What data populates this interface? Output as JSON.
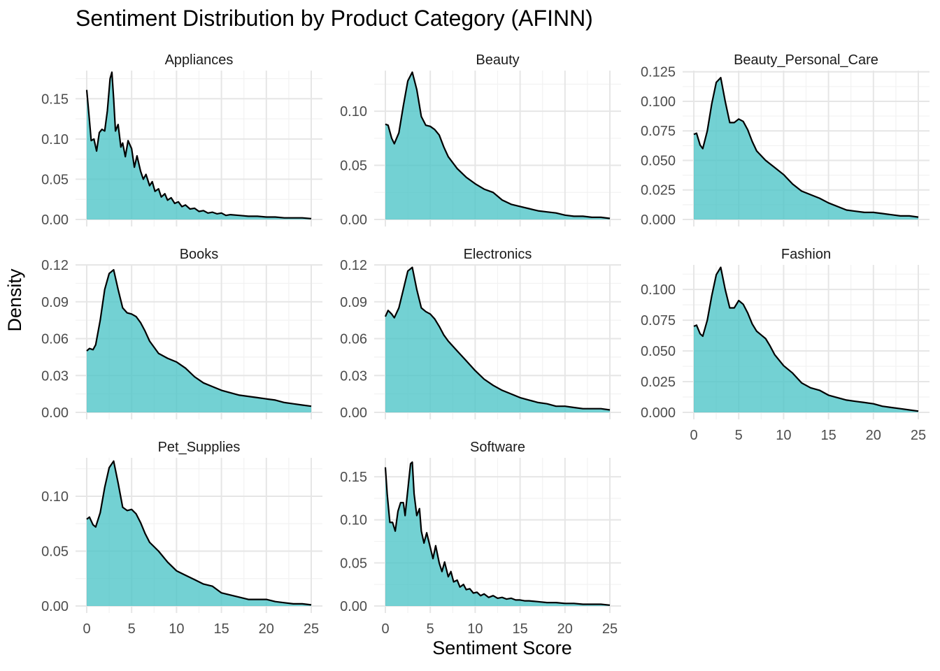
{
  "chart_data": {
    "type": "area",
    "title": "Sentiment Distribution by Product Category (AFINN)",
    "xlabel": "Sentiment Score",
    "ylabel": "Density",
    "fill_color": "#4cc4c7",
    "line_color": "#000000",
    "grid": true,
    "xlim": [
      0,
      25
    ],
    "x_ticks": [
      0,
      5,
      10,
      15,
      20,
      25
    ],
    "panels": [
      {
        "name": "Appliances",
        "ylim": [
          0,
          0.185
        ],
        "y_ticks": [
          0,
          0.05,
          0.1,
          0.15
        ],
        "y_tick_labels": [
          "0.00",
          "0.05",
          "0.10",
          "0.15"
        ],
        "x": [
          0,
          0.25,
          0.5,
          0.8,
          1.1,
          1.4,
          1.7,
          2.0,
          2.3,
          2.6,
          2.8,
          3.0,
          3.2,
          3.5,
          3.8,
          4.0,
          4.3,
          4.6,
          5.0,
          5.3,
          5.6,
          6.0,
          6.3,
          6.6,
          7.0,
          7.3,
          7.6,
          8.0,
          8.3,
          8.7,
          9.0,
          9.4,
          9.8,
          10.2,
          10.6,
          11.0,
          11.5,
          12.0,
          12.5,
          13.0,
          13.5,
          14.0,
          14.5,
          15.0,
          15.5,
          16.0,
          17.0,
          18.0,
          19.0,
          20.0,
          21.0,
          22.0,
          23.0,
          24.0,
          25.0
        ],
        "y": [
          0.161,
          0.13,
          0.098,
          0.1,
          0.085,
          0.108,
          0.112,
          0.11,
          0.135,
          0.175,
          0.183,
          0.15,
          0.11,
          0.118,
          0.09,
          0.095,
          0.078,
          0.098,
          0.088,
          0.065,
          0.079,
          0.06,
          0.05,
          0.056,
          0.042,
          0.047,
          0.035,
          0.038,
          0.028,
          0.032,
          0.024,
          0.027,
          0.02,
          0.022,
          0.016,
          0.018,
          0.013,
          0.014,
          0.01,
          0.011,
          0.008,
          0.009,
          0.007,
          0.008,
          0.005,
          0.006,
          0.005,
          0.004,
          0.004,
          0.003,
          0.003,
          0.002,
          0.002,
          0.002,
          0.001
        ]
      },
      {
        "name": "Beauty",
        "ylim": [
          0,
          0.1375
        ],
        "y_ticks": [
          0,
          0.05,
          0.1
        ],
        "y_tick_labels": [
          "0.00",
          "0.05",
          "0.10"
        ],
        "x": [
          0,
          0.3,
          0.7,
          1.0,
          1.5,
          2.0,
          2.5,
          3.0,
          3.5,
          4.0,
          4.5,
          5.0,
          5.5,
          6.0,
          6.5,
          7.0,
          8.0,
          9.0,
          10.0,
          11.0,
          12.0,
          13.0,
          14.0,
          15.0,
          16.0,
          17.0,
          18.0,
          19.0,
          20.0,
          21.0,
          22.0,
          23.0,
          24.0,
          25.0
        ],
        "y": [
          0.088,
          0.087,
          0.075,
          0.07,
          0.08,
          0.105,
          0.128,
          0.136,
          0.12,
          0.095,
          0.087,
          0.086,
          0.083,
          0.078,
          0.067,
          0.058,
          0.047,
          0.039,
          0.033,
          0.028,
          0.025,
          0.018,
          0.014,
          0.012,
          0.01,
          0.008,
          0.007,
          0.006,
          0.004,
          0.003,
          0.003,
          0.002,
          0.002,
          0.001
        ]
      },
      {
        "name": "Beauty_Personal_Care",
        "ylim": [
          0,
          0.126
        ],
        "y_ticks": [
          0,
          0.025,
          0.05,
          0.075,
          0.1,
          0.125
        ],
        "y_tick_labels": [
          "0.000",
          "0.025",
          "0.050",
          "0.075",
          "0.100",
          "0.125"
        ],
        "x": [
          0,
          0.3,
          0.7,
          1.0,
          1.5,
          2.0,
          2.5,
          3.0,
          3.5,
          4.0,
          4.5,
          5.0,
          5.5,
          6.0,
          6.5,
          7.0,
          8.0,
          9.0,
          10.0,
          11.0,
          12.0,
          13.0,
          14.0,
          15.0,
          16.0,
          17.0,
          18.0,
          19.0,
          20.0,
          21.0,
          22.0,
          23.0,
          24.0,
          25.0
        ],
        "y": [
          0.072,
          0.073,
          0.063,
          0.06,
          0.075,
          0.098,
          0.116,
          0.12,
          0.1,
          0.082,
          0.082,
          0.085,
          0.083,
          0.076,
          0.066,
          0.058,
          0.05,
          0.044,
          0.038,
          0.03,
          0.024,
          0.021,
          0.018,
          0.014,
          0.011,
          0.008,
          0.007,
          0.006,
          0.006,
          0.005,
          0.004,
          0.003,
          0.003,
          0.002
        ]
      },
      {
        "name": "Books",
        "ylim": [
          0,
          0.12
        ],
        "y_ticks": [
          0,
          0.03,
          0.06,
          0.09,
          0.12
        ],
        "y_tick_labels": [
          "0.00",
          "0.03",
          "0.06",
          "0.09",
          "0.12"
        ],
        "x": [
          0,
          0.3,
          0.7,
          1.0,
          1.5,
          2.0,
          2.5,
          3.0,
          3.5,
          4.0,
          4.5,
          5.0,
          5.5,
          6.0,
          6.5,
          7.0,
          8.0,
          9.0,
          10.0,
          11.0,
          12.0,
          13.0,
          14.0,
          15.0,
          16.0,
          17.0,
          18.0,
          19.0,
          20.0,
          21.0,
          22.0,
          23.0,
          24.0,
          25.0
        ],
        "y": [
          0.05,
          0.052,
          0.051,
          0.055,
          0.075,
          0.1,
          0.113,
          0.116,
          0.1,
          0.085,
          0.081,
          0.08,
          0.078,
          0.073,
          0.066,
          0.058,
          0.048,
          0.044,
          0.041,
          0.036,
          0.029,
          0.024,
          0.021,
          0.018,
          0.016,
          0.014,
          0.013,
          0.012,
          0.011,
          0.01,
          0.008,
          0.007,
          0.006,
          0.005
        ]
      },
      {
        "name": "Electronics",
        "ylim": [
          0,
          0.12
        ],
        "y_ticks": [
          0,
          0.03,
          0.06,
          0.09,
          0.12
        ],
        "y_tick_labels": [
          "0.00",
          "0.03",
          "0.06",
          "0.09",
          "0.12"
        ],
        "x": [
          0,
          0.3,
          0.7,
          1.0,
          1.5,
          2.0,
          2.5,
          3.0,
          3.5,
          4.0,
          4.5,
          5.0,
          5.5,
          6.0,
          6.5,
          7.0,
          8.0,
          9.0,
          10.0,
          11.0,
          12.0,
          13.0,
          14.0,
          15.0,
          16.0,
          17.0,
          18.0,
          19.0,
          20.0,
          21.0,
          22.0,
          23.0,
          24.0,
          25.0
        ],
        "y": [
          0.078,
          0.083,
          0.08,
          0.077,
          0.085,
          0.1,
          0.115,
          0.118,
          0.1,
          0.085,
          0.082,
          0.08,
          0.076,
          0.07,
          0.063,
          0.058,
          0.05,
          0.042,
          0.034,
          0.027,
          0.022,
          0.018,
          0.015,
          0.012,
          0.01,
          0.008,
          0.007,
          0.005,
          0.005,
          0.004,
          0.003,
          0.003,
          0.003,
          0.002
        ]
      },
      {
        "name": "Fashion",
        "ylim": [
          0,
          0.12
        ],
        "y_ticks": [
          0,
          0.025,
          0.05,
          0.075,
          0.1
        ],
        "y_tick_labels": [
          "0.000",
          "0.025",
          "0.050",
          "0.075",
          "0.100"
        ],
        "x": [
          0,
          0.3,
          0.7,
          1.0,
          1.5,
          2.0,
          2.5,
          3.0,
          3.5,
          4.0,
          4.5,
          5.0,
          5.5,
          6.0,
          6.5,
          7.0,
          7.5,
          8.0,
          8.5,
          9.0,
          10.0,
          11.0,
          12.0,
          13.0,
          14.0,
          15.0,
          16.0,
          17.0,
          18.0,
          19.0,
          20.0,
          21.0,
          22.0,
          23.0,
          24.0,
          25.0
        ],
        "y": [
          0.07,
          0.071,
          0.064,
          0.062,
          0.075,
          0.095,
          0.112,
          0.118,
          0.1,
          0.085,
          0.085,
          0.091,
          0.088,
          0.081,
          0.072,
          0.066,
          0.063,
          0.06,
          0.054,
          0.047,
          0.038,
          0.032,
          0.024,
          0.02,
          0.018,
          0.014,
          0.012,
          0.01,
          0.009,
          0.008,
          0.007,
          0.005,
          0.004,
          0.003,
          0.002,
          0.001
        ]
      },
      {
        "name": "Pet_Supplies",
        "ylim": [
          0,
          0.135
        ],
        "y_ticks": [
          0,
          0.05,
          0.1
        ],
        "y_tick_labels": [
          "0.00",
          "0.05",
          "0.10"
        ],
        "x": [
          0,
          0.3,
          0.7,
          1.0,
          1.5,
          2.0,
          2.5,
          3.0,
          3.5,
          4.0,
          4.5,
          5.0,
          5.5,
          6.0,
          6.5,
          7.0,
          8.0,
          9.0,
          10.0,
          11.0,
          12.0,
          13.0,
          14.0,
          15.0,
          16.0,
          17.0,
          18.0,
          19.0,
          20.0,
          21.0,
          22.0,
          23.0,
          24.0,
          25.0
        ],
        "y": [
          0.079,
          0.081,
          0.074,
          0.072,
          0.085,
          0.108,
          0.126,
          0.132,
          0.112,
          0.09,
          0.087,
          0.088,
          0.084,
          0.076,
          0.066,
          0.058,
          0.05,
          0.04,
          0.032,
          0.028,
          0.024,
          0.02,
          0.018,
          0.012,
          0.01,
          0.008,
          0.006,
          0.006,
          0.006,
          0.004,
          0.003,
          0.002,
          0.002,
          0.001
        ]
      },
      {
        "name": "Software",
        "ylim": [
          0,
          0.172
        ],
        "y_ticks": [
          0,
          0.05,
          0.1,
          0.15
        ],
        "y_tick_labels": [
          "0.00",
          "0.05",
          "0.10",
          "0.15"
        ],
        "x": [
          0,
          0.2,
          0.5,
          0.8,
          1.1,
          1.4,
          1.7,
          2.0,
          2.2,
          2.5,
          2.8,
          3.0,
          3.2,
          3.5,
          3.8,
          4.0,
          4.3,
          4.6,
          5.0,
          5.3,
          5.6,
          6.0,
          6.3,
          6.6,
          7.0,
          7.3,
          7.6,
          8.0,
          8.3,
          8.7,
          9.0,
          9.4,
          9.8,
          10.2,
          10.6,
          11.0,
          11.5,
          12.0,
          12.5,
          13.0,
          13.5,
          14.0,
          14.5,
          15.0,
          15.5,
          16.0,
          17.0,
          18.0,
          19.0,
          20.0,
          21.0,
          22.0,
          23.0,
          24.0,
          25.0
        ],
        "y": [
          0.161,
          0.13,
          0.097,
          0.097,
          0.087,
          0.11,
          0.12,
          0.12,
          0.105,
          0.135,
          0.165,
          0.167,
          0.13,
          0.105,
          0.113,
          0.087,
          0.073,
          0.085,
          0.068,
          0.055,
          0.07,
          0.05,
          0.04,
          0.051,
          0.034,
          0.04,
          0.028,
          0.03,
          0.022,
          0.025,
          0.019,
          0.02,
          0.015,
          0.016,
          0.012,
          0.014,
          0.01,
          0.012,
          0.009,
          0.01,
          0.008,
          0.009,
          0.007,
          0.007,
          0.006,
          0.006,
          0.005,
          0.004,
          0.004,
          0.003,
          0.003,
          0.002,
          0.002,
          0.002,
          0.001
        ]
      }
    ]
  }
}
